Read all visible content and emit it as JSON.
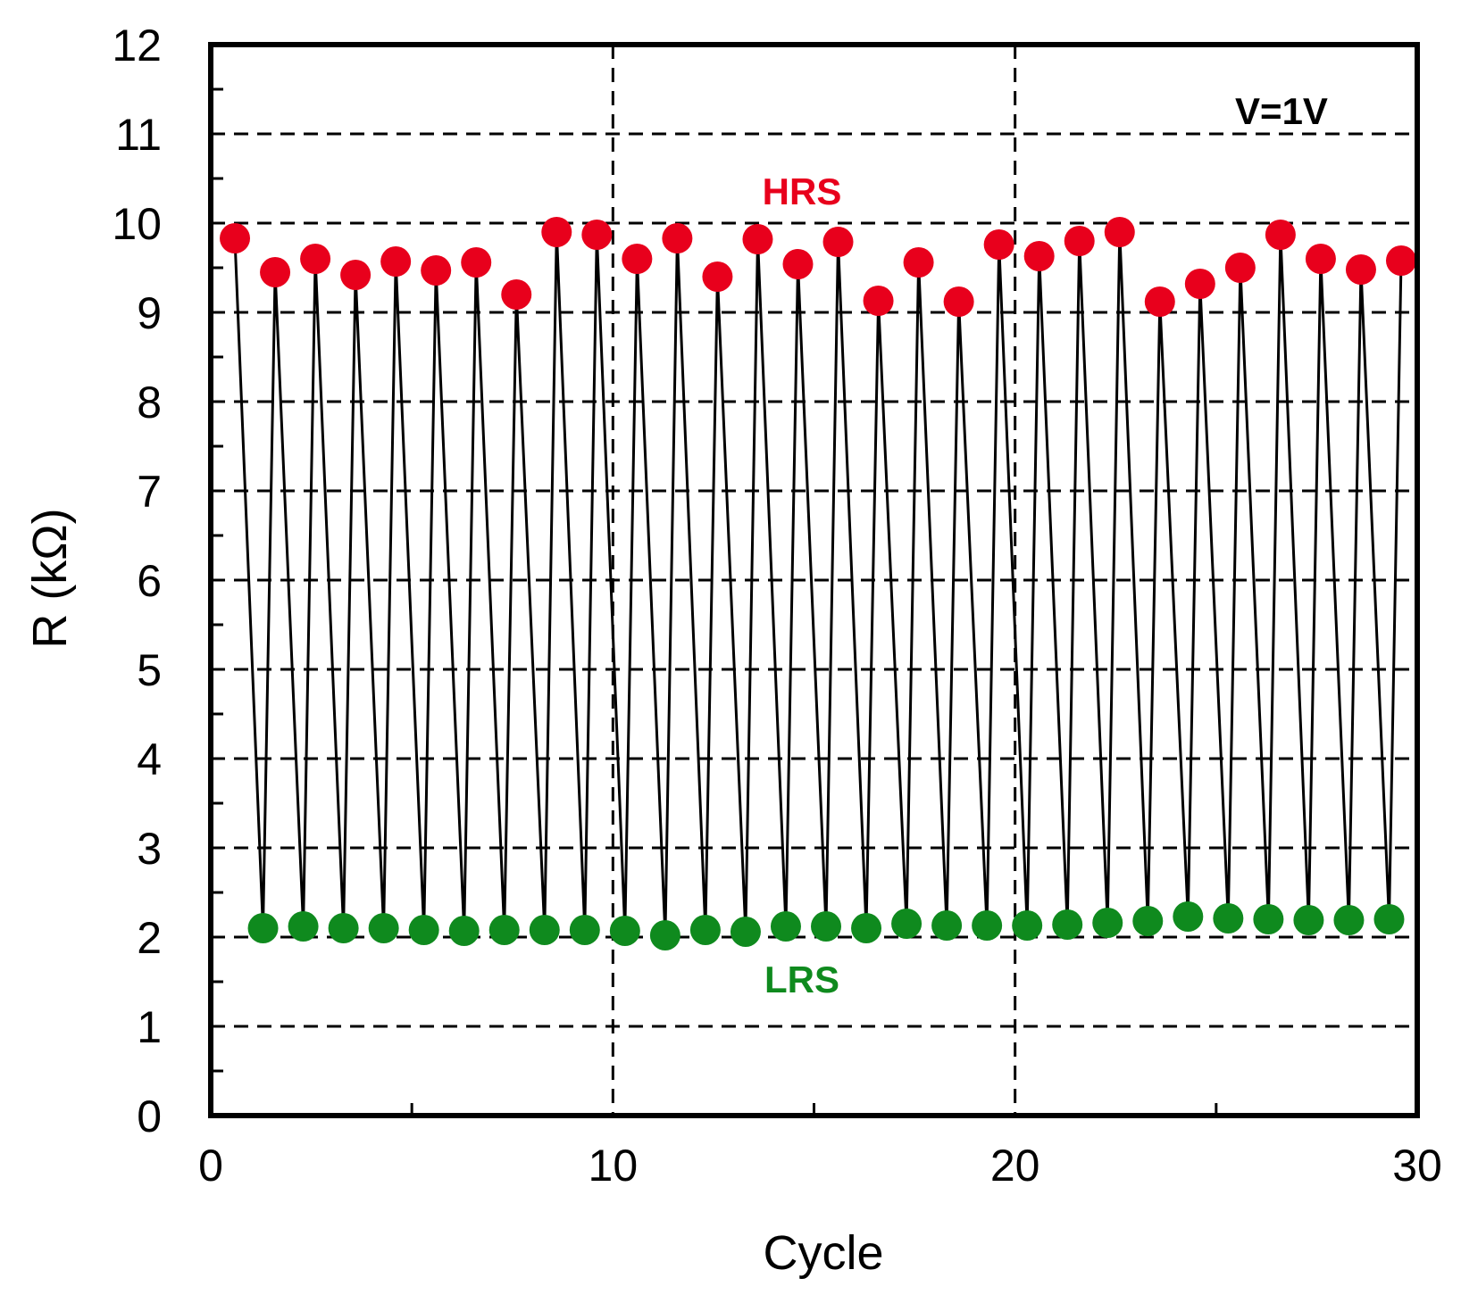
{
  "chart_data": {
    "type": "line",
    "title": "",
    "xlabel": "Cycle",
    "ylabel": "R (kΩ)",
    "xlim": [
      0,
      30
    ],
    "ylim": [
      0,
      12
    ],
    "xticks": [
      0,
      10,
      20,
      30
    ],
    "yticks": [
      0,
      1,
      2,
      3,
      4,
      5,
      6,
      7,
      8,
      9,
      10,
      11,
      12
    ],
    "grid": "dashed",
    "annotations": {
      "voltage": "V=1V",
      "hrs": "HRS",
      "lrs": "LRS"
    },
    "colors": {
      "hrs": "#e8001c",
      "lrs": "#0f8a1e",
      "line": "#000000"
    },
    "series": [
      {
        "name": "HRS",
        "x": [
          0.6,
          1.6,
          2.6,
          3.6,
          4.6,
          5.6,
          6.6,
          7.6,
          8.6,
          9.6,
          10.6,
          11.6,
          12.6,
          13.6,
          14.6,
          15.6,
          16.6,
          17.6,
          18.6,
          19.6,
          20.6,
          21.6,
          22.6,
          23.6,
          24.6,
          25.6,
          26.6,
          27.6,
          28.6,
          29.6
        ],
        "values": [
          9.83,
          9.45,
          9.6,
          9.42,
          9.57,
          9.47,
          9.56,
          9.2,
          9.9,
          9.87,
          9.6,
          9.83,
          9.4,
          9.82,
          9.54,
          9.79,
          9.13,
          9.56,
          9.12,
          9.76,
          9.63,
          9.8,
          9.9,
          9.12,
          9.32,
          9.5,
          9.87,
          9.6,
          9.48,
          9.58
        ]
      },
      {
        "name": "LRS",
        "x": [
          1.3,
          2.3,
          3.3,
          4.3,
          5.3,
          6.3,
          7.3,
          8.3,
          9.3,
          10.3,
          11.3,
          12.3,
          13.3,
          14.3,
          15.3,
          16.3,
          17.3,
          18.3,
          19.3,
          20.3,
          21.3,
          22.3,
          23.3,
          24.3,
          25.3,
          26.3,
          27.3,
          28.3,
          29.3
        ],
        "values": [
          2.1,
          2.12,
          2.1,
          2.1,
          2.08,
          2.07,
          2.08,
          2.08,
          2.08,
          2.07,
          2.02,
          2.08,
          2.06,
          2.12,
          2.12,
          2.1,
          2.15,
          2.13,
          2.13,
          2.13,
          2.14,
          2.16,
          2.18,
          2.23,
          2.21,
          2.2,
          2.19,
          2.19,
          2.2
        ]
      }
    ]
  }
}
